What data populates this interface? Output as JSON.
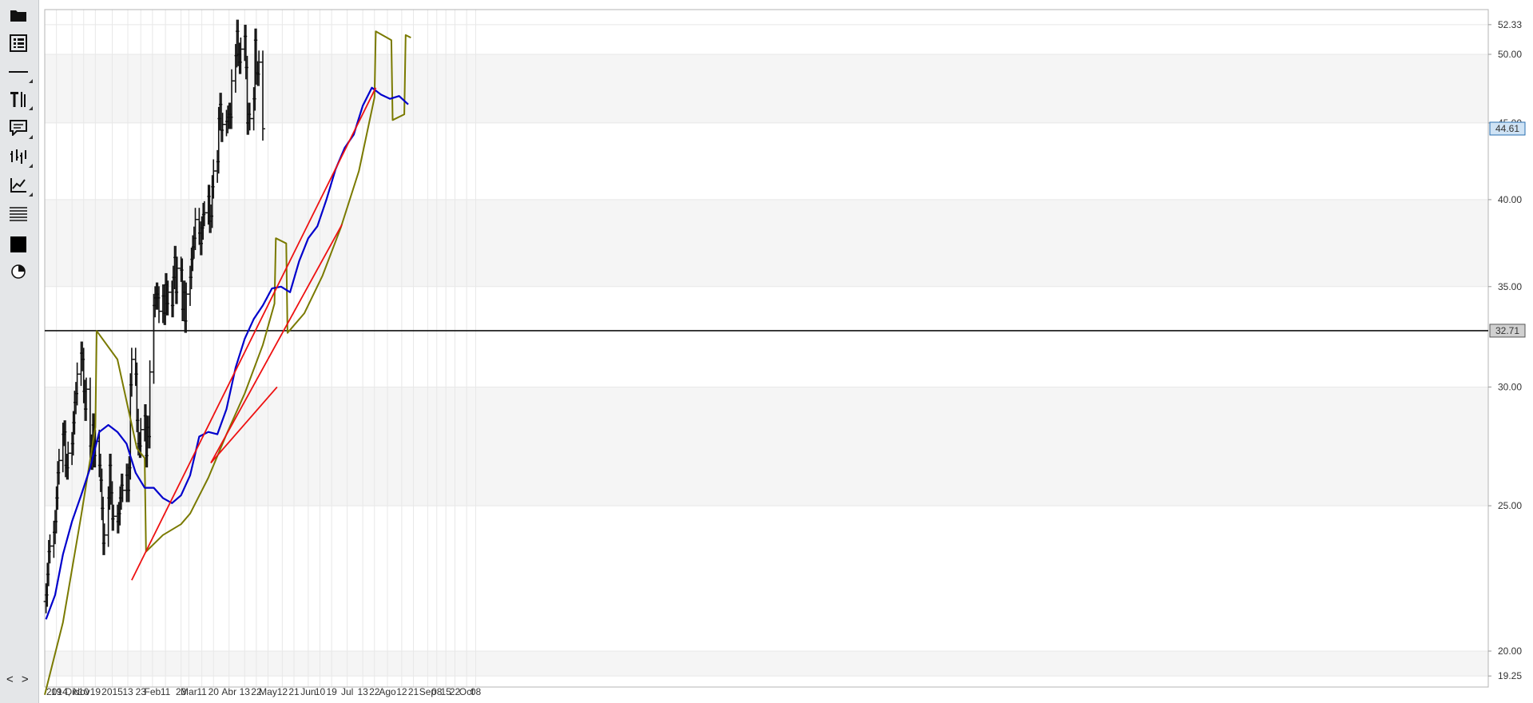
{
  "toolbar": {
    "tools": [
      {
        "name": "open-folder-icon",
        "arrow": false
      },
      {
        "name": "list-view-icon",
        "arrow": false
      },
      {
        "name": "horizontal-line-icon",
        "arrow": true
      },
      {
        "name": "text-tools-icon",
        "arrow": true
      },
      {
        "name": "comment-icon",
        "arrow": true
      },
      {
        "name": "bar-style-icon",
        "arrow": true
      },
      {
        "name": "line-chart-icon",
        "arrow": true
      },
      {
        "name": "fibonacci-lines-icon",
        "arrow": false
      },
      {
        "name": "color-fill-icon",
        "arrow": false
      },
      {
        "name": "pie-chart-icon",
        "arrow": false
      }
    ],
    "nav_arrows": "< >"
  },
  "chart_data": {
    "type": "line",
    "title": "",
    "xlabel": "",
    "ylabel": "",
    "y_scale": "log",
    "ylim": [
      19.25,
      52.33
    ],
    "y_ticks": [
      "52.33",
      "50.00",
      "45.00",
      "40.00",
      "35.00",
      "30.00",
      "25.00",
      "20.00",
      "19.25"
    ],
    "x_ticks": [
      "2014, Nov",
      "19",
      "Dic",
      "10",
      "19",
      "2015",
      "13",
      "23",
      "Feb",
      "11",
      "23",
      "Mar",
      "11",
      "20",
      "Abr",
      "13",
      "22",
      "May",
      "12",
      "21",
      "Jun",
      "10",
      "19",
      "Jul",
      "13",
      "22",
      "Ago",
      "12",
      "21",
      "Sep",
      "08",
      "15",
      "22",
      "Oct",
      "08"
    ],
    "x_range": [
      "2014-11-10",
      "2015-10-12"
    ],
    "grid": true,
    "current_price_label": "44.61",
    "horizontal_line_label": "32.71",
    "horizontal_line_value": 32.71,
    "colors": {
      "bars": "#111111",
      "moving_average": "#0000cc",
      "envelope": "#7a7a00",
      "trendlines": "#ee1111",
      "price_marker_bg": "#cfe3f5",
      "price_marker_border": "#2a6fb0",
      "level_marker_bg": "#d0d0d0",
      "band": "#f5f5f5"
    },
    "series": [
      {
        "type": "ohlc",
        "values_close": [
          21.8,
          22.5,
          23.3,
          23.5,
          24.0,
          24.4,
          25.3,
          26.3,
          26.8,
          27.9,
          28.0,
          26.6,
          26.5,
          27.1,
          27.5,
          28.4,
          29.3,
          29.7,
          30.6,
          31.6,
          31.3,
          29.8,
          29.0,
          29.9,
          27.4,
          26.9,
          28.3,
          27.0,
          27.6,
          26.6,
          26.0,
          24.9,
          23.6,
          23.9,
          25.3,
          26.6,
          25.5,
          24.5,
          24.6,
          24.4,
          24.7,
          25.3,
          25.8,
          25.6,
          26.2,
          25.6,
          26.5,
          30.1,
          31.3,
          30.6,
          28.5,
          27.5,
          27.4,
          28.1,
          28.7,
          27.0,
          28.2,
          27.8,
          30.7,
          34.0,
          34.4,
          34.6,
          34.4,
          33.7,
          34.5,
          33.6,
          35.1,
          34.1,
          34.7,
          34.0,
          35.5,
          36.6,
          34.7,
          36.0,
          35.9,
          33.8,
          34.7,
          33.2,
          34.6,
          35.5,
          36.5,
          37.2,
          37.7,
          38.8,
          38.0,
          37.4,
          38.3,
          39.1,
          39.2,
          40.2,
          38.7,
          39.0,
          40.8,
          41.8,
          42.4,
          45.3,
          46.3,
          44.5,
          44.9,
          45.1,
          45.4,
          45.6,
          45.4,
          48.0,
          49.9,
          51.8,
          50.0,
          49.4,
          50.4,
          51.4,
          49.0,
          45.0,
          45.6,
          45.3,
          46.7,
          51.1,
          48.6,
          48.5,
          49.4,
          44.6
        ]
      },
      {
        "name": "",
        "type": "moving_average",
        "x": [
          "2014-11-11",
          "2014-11-18",
          "2014-11-24",
          "2014-12-01",
          "2014-12-08",
          "2014-12-15",
          "2014-12-22",
          "2014-12-29",
          "2015-01-05",
          "2015-01-12",
          "2015-01-19",
          "2015-01-26",
          "2015-02-02",
          "2015-02-09",
          "2015-02-16",
          "2015-02-23",
          "2015-03-02",
          "2015-03-09",
          "2015-03-16",
          "2015-03-23",
          "2015-03-30",
          "2015-04-06",
          "2015-04-13",
          "2015-04-20",
          "2015-04-27",
          "2015-05-04",
          "2015-05-11",
          "2015-05-18",
          "2015-05-25",
          "2015-06-01",
          "2015-06-08",
          "2015-06-15",
          "2015-06-22",
          "2015-06-29",
          "2015-07-06",
          "2015-07-13",
          "2015-07-20",
          "2015-07-27",
          "2015-08-03",
          "2015-08-10",
          "2015-08-17"
        ],
        "values": [
          21.0,
          21.8,
          23.2,
          24.4,
          25.4,
          26.5,
          28.0,
          28.3,
          28.0,
          27.5,
          26.3,
          25.7,
          25.7,
          25.3,
          25.1,
          25.4,
          26.2,
          27.8,
          28.0,
          27.9,
          29.0,
          30.9,
          32.3,
          33.3,
          34.0,
          34.9,
          35.0,
          34.7,
          36.4,
          37.7,
          38.4,
          40.0,
          41.9,
          43.3,
          44.2,
          46.2,
          47.5,
          47.0,
          46.7,
          46.9,
          46.3
        ]
      },
      {
        "name": "",
        "type": "envelope",
        "x": [
          "2014-11-10",
          "2014-11-24",
          "2014-12-08",
          "2014-12-19",
          "2014-12-20",
          "2015-01-05",
          "2015-01-20",
          "2015-01-26",
          "2015-01-27",
          "2015-02-09",
          "2015-02-23",
          "2015-03-02",
          "2015-03-16",
          "2015-03-30",
          "2015-04-13",
          "2015-04-27",
          "2015-05-06",
          "2015-05-07",
          "2015-05-15",
          "2015-05-16",
          "2015-05-29",
          "2015-06-12",
          "2015-06-26",
          "2015-07-10",
          "2015-07-22",
          "2015-07-23",
          "2015-08-04",
          "2015-08-05",
          "2015-08-14",
          "2015-08-15",
          "2015-08-19"
        ],
        "values": [
          18.7,
          20.9,
          24.6,
          28.2,
          32.7,
          31.3,
          27.3,
          26.9,
          23.3,
          23.9,
          24.3,
          24.7,
          26.1,
          27.9,
          29.7,
          32.0,
          34.1,
          37.7,
          37.4,
          32.6,
          33.6,
          35.6,
          38.3,
          41.8,
          46.8,
          51.8,
          51.1,
          45.2,
          45.6,
          51.5,
          51.3
        ]
      }
    ],
    "trendlines": [
      {
        "from": [
          "2015-01-16",
          22.3
        ],
        "to": [
          "2015-07-23",
          47.5
        ]
      },
      {
        "from": [
          "2015-03-18",
          26.7
        ],
        "to": [
          "2015-05-08",
          30.0
        ]
      },
      {
        "from": [
          "2015-03-18",
          26.7
        ],
        "to": [
          "2015-06-27",
          38.5
        ]
      }
    ]
  }
}
